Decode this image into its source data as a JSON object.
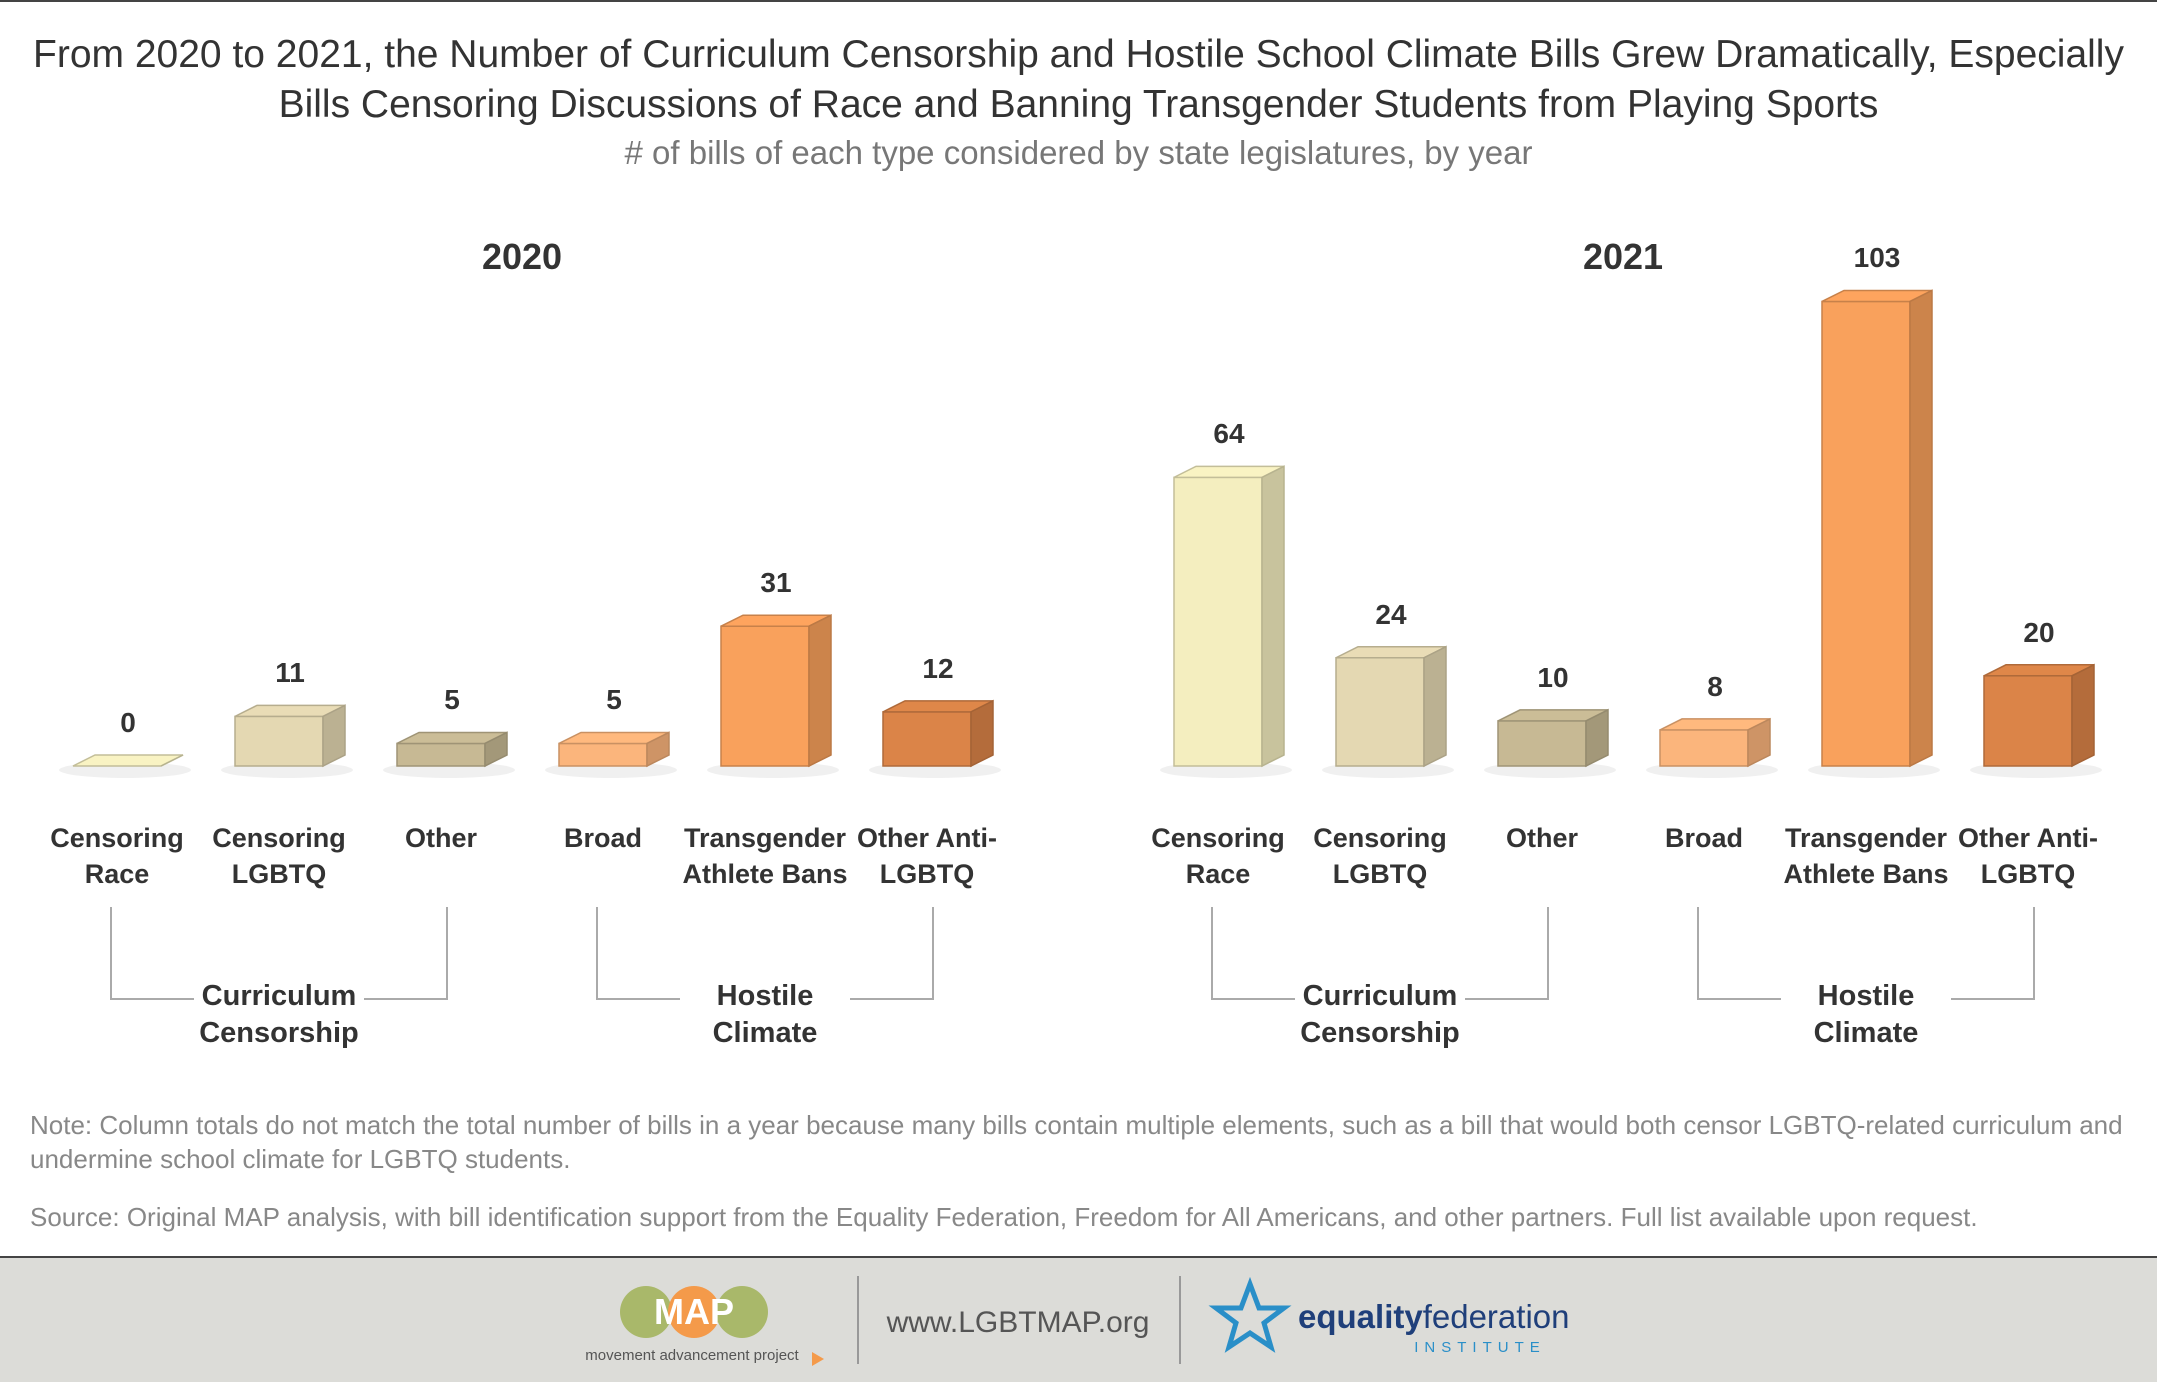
{
  "title": "From 2020 to 2021, the Number of Curriculum Censorship and Hostile School Climate Bills Grew Dramatically, Especially Bills Censoring Discussions of Race and Banning Transgender Students from Playing Sports",
  "subtitle": "# of bills of each type considered by state legislatures, by year",
  "chart_data": [
    {
      "type": "bar",
      "title": "2020",
      "categories": [
        "Censoring Race",
        "Censoring LGBTQ",
        "Other",
        "Broad",
        "Transgender Athlete Bans",
        "Other Anti-LGBTQ"
      ],
      "values": [
        0,
        11,
        5,
        5,
        31,
        12
      ],
      "colors": [
        "#f4eebf",
        "#e4d8b2",
        "#c7b994",
        "#fbb57c",
        "#f9a15c",
        "#db8448"
      ],
      "groups": [
        "Curriculum Censorship",
        "Hostile Climate"
      ]
    },
    {
      "type": "bar",
      "title": "2021",
      "categories": [
        "Censoring Race",
        "Censoring LGBTQ",
        "Other",
        "Broad",
        "Transgender Athlete Bans",
        "Other Anti-LGBTQ"
      ],
      "values": [
        64,
        24,
        10,
        8,
        103,
        20
      ],
      "colors": [
        "#f4eebf",
        "#e4d8b2",
        "#c7b994",
        "#fbb57c",
        "#f9a15c",
        "#db8448"
      ],
      "groups": [
        "Curriculum Censorship",
        "Hostile Climate"
      ]
    }
  ],
  "note": "Note: Column totals do not match the total number of bills in a year because many bills contain multiple elements, such as a bill that would both censor LGBTQ-related curriculum and undermine school climate for LGBTQ students.",
  "source": "Source: Original MAP analysis, with bill identification support from the Equality Federation, Freedom for All Americans, and other partners. Full list available upon request.",
  "footer": {
    "map_logo": "MAP",
    "map_name": "movement advancement project",
    "website": "www.LGBTMAP.org",
    "partner": [
      "equality",
      "federation"
    ],
    "partner_sub": "INSTITUTE"
  }
}
